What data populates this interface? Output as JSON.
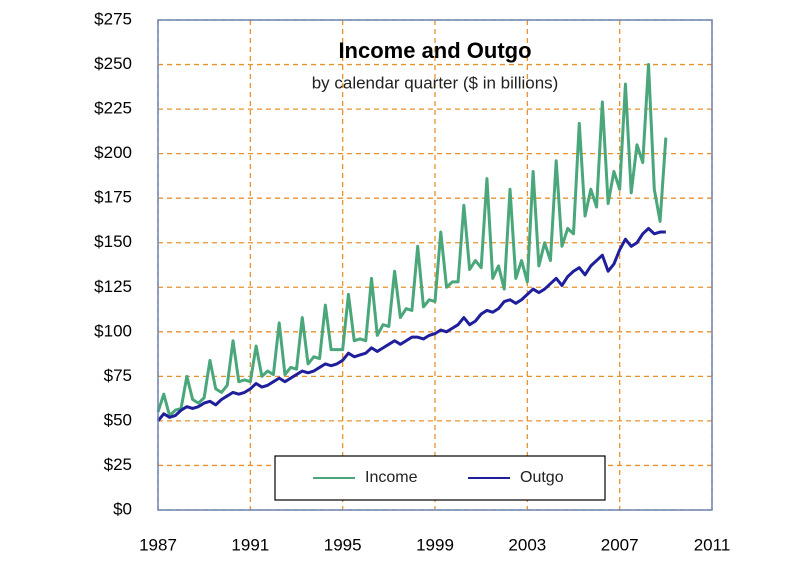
{
  "chart_data": {
    "type": "line",
    "title": "Income and Outgo",
    "subtitle": "by calendar quarter ($ in billions)",
    "x": [
      1987,
      1987.25,
      1987.5,
      1987.75,
      1988,
      1988.25,
      1988.5,
      1988.75,
      1989,
      1989.25,
      1989.5,
      1989.75,
      1990,
      1990.25,
      1990.5,
      1990.75,
      1991,
      1991.25,
      1991.5,
      1991.75,
      1992,
      1992.25,
      1992.5,
      1992.75,
      1993,
      1993.25,
      1993.5,
      1993.75,
      1994,
      1994.25,
      1994.5,
      1994.75,
      1995,
      1995.25,
      1995.5,
      1995.75,
      1996,
      1996.25,
      1996.5,
      1996.75,
      1997,
      1997.25,
      1997.5,
      1997.75,
      1998,
      1998.25,
      1998.5,
      1998.75,
      1999,
      1999.25,
      1999.5,
      1999.75,
      2000,
      2000.25,
      2000.5,
      2000.75,
      2001,
      2001.25,
      2001.5,
      2001.75,
      2002,
      2002.25,
      2002.5,
      2002.75,
      2003,
      2003.25,
      2003.5,
      2003.75,
      2004,
      2004.25,
      2004.5,
      2004.75,
      2005,
      2005.25,
      2005.5,
      2005.75,
      2006,
      2006.25,
      2006.5,
      2006.75,
      2007,
      2007.25,
      2007.5,
      2007.75,
      2008,
      2008.25,
      2008.5,
      2008.75,
      2009
    ],
    "series": [
      {
        "name": "Income",
        "color": "#4aa77b",
        "values": [
          55,
          65,
          53,
          56,
          57,
          75,
          62,
          60,
          63,
          84,
          68,
          66,
          70,
          95,
          72,
          73,
          72,
          92,
          75,
          78,
          76,
          105,
          76,
          80,
          79,
          108,
          82,
          86,
          85,
          115,
          90,
          90,
          90,
          121,
          95,
          96,
          95,
          130,
          98,
          104,
          103,
          134,
          108,
          113,
          112,
          148,
          114,
          118,
          117,
          156,
          125,
          128,
          128,
          171,
          135,
          140,
          136,
          186,
          130,
          137,
          124,
          180,
          130,
          140,
          128,
          190,
          137,
          150,
          140,
          196,
          148,
          158,
          155,
          217,
          165,
          180,
          170,
          229,
          172,
          190,
          180,
          239,
          178,
          205,
          195,
          250,
          180,
          162,
          209
        ]
      },
      {
        "name": "Outgo",
        "color": "#1f1f9c",
        "values": [
          50,
          54,
          52,
          53,
          56,
          58,
          57,
          58,
          60,
          61,
          59,
          62,
          64,
          66,
          65,
          66,
          68,
          71,
          69,
          70,
          72,
          74,
          72,
          74,
          76,
          78,
          77,
          78,
          80,
          82,
          81,
          82,
          84,
          88,
          86,
          87,
          88,
          91,
          89,
          91,
          93,
          95,
          93,
          95,
          97,
          97,
          96,
          98,
          99,
          101,
          100,
          102,
          104,
          108,
          104,
          106,
          110,
          112,
          111,
          113,
          117,
          118,
          116,
          118,
          121,
          124,
          122,
          124,
          127,
          130,
          126,
          131,
          134,
          136,
          132,
          137,
          140,
          143,
          134,
          138,
          146,
          152,
          148,
          150,
          155,
          158,
          155,
          156,
          156
        ]
      }
    ],
    "xlim": [
      1987,
      2011
    ],
    "xticks": [
      1987,
      1991,
      1995,
      1999,
      2003,
      2007,
      2011
    ],
    "ylim": [
      0,
      275
    ],
    "yticks": [
      {
        "value": 0,
        "label": "$0"
      },
      {
        "value": 25,
        "label": "$25"
      },
      {
        "value": 50,
        "label": "$50"
      },
      {
        "value": 75,
        "label": "$75"
      },
      {
        "value": 100,
        "label": "$100"
      },
      {
        "value": 125,
        "label": "$125"
      },
      {
        "value": 150,
        "label": "$150"
      },
      {
        "value": 175,
        "label": "$175"
      },
      {
        "value": 200,
        "label": "$200"
      },
      {
        "value": 225,
        "label": "$225"
      },
      {
        "value": 250,
        "label": "$250"
      },
      {
        "value": 275,
        "label": "$275"
      }
    ],
    "grid": true,
    "grid_color": "#e8922e",
    "legend": "lower center"
  }
}
